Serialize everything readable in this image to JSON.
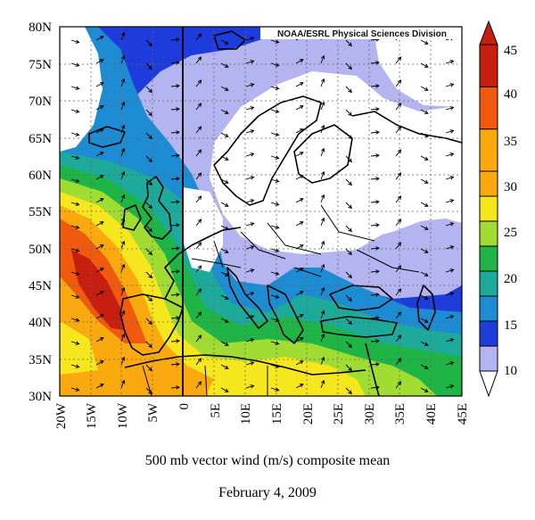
{
  "credit": "NOAA/ESRL Physical Sciences Division",
  "caption": {
    "title": "500 mb vector wind (m/s) composite mean",
    "date": "February 4, 2009"
  },
  "map": {
    "lon_range": [
      -20,
      45
    ],
    "lat_range": [
      30,
      80
    ],
    "grid": "dotted",
    "lat_labels": [
      "80N",
      "75N",
      "70N",
      "65N",
      "60N",
      "55N",
      "50N",
      "45N",
      "40N",
      "35N",
      "30N"
    ],
    "lon_labels": [
      "20W",
      "15W",
      "10W",
      "5W",
      "0",
      "5E",
      "10E",
      "15E",
      "20E",
      "25E",
      "30E",
      "35E",
      "40E",
      "45E"
    ]
  },
  "colorbar": {
    "labels": [
      "10",
      "15",
      "20",
      "25",
      "30",
      "35",
      "40",
      "45"
    ],
    "colors": [
      "#b4b4f0",
      "#1e3cdc",
      "#1e8cd2",
      "#1eaa9b",
      "#1eb446",
      "#a0dc32",
      "#f5e61e",
      "#faaa0f",
      "#f05a0f",
      "#c81e0f"
    ]
  }
}
